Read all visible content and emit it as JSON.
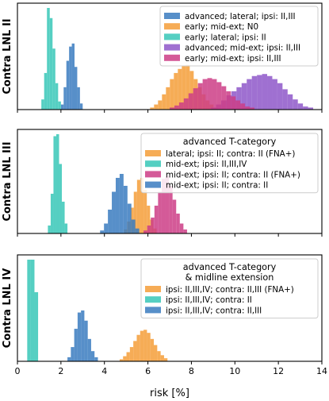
{
  "chart_data": [
    {
      "type": "histogram",
      "ylabel": "Contra LNL II",
      "xlim": [
        0,
        14
      ],
      "legend_title": "",
      "legend_position": "top-right",
      "series": [
        {
          "name": "advanced; lateral; ipsi: II,III",
          "color": "#3a7bbf",
          "start": 2.0,
          "end": 3.0,
          "counts": [
            5,
            22,
            48,
            62,
            65,
            42,
            22,
            6
          ]
        },
        {
          "name": "early; mid-ext; N0",
          "color": "#f49e38",
          "start": 6.1,
          "end": 9.2,
          "counts": [
            2,
            5,
            9,
            15,
            22,
            30,
            36,
            40,
            43,
            44,
            38,
            30,
            22,
            15,
            9,
            5,
            2
          ]
        },
        {
          "name": "early; lateral; ipsi: II",
          "color": "#37c7b7",
          "start": 1.1,
          "end": 2.0,
          "counts": [
            10,
            36,
            100,
            90,
            60,
            26,
            8
          ]
        },
        {
          "name": "advanced; mid-ext; ipsi: II,III",
          "color": "#8e57c9",
          "start": 8.9,
          "end": 13.6,
          "counts": [
            2,
            5,
            9,
            14,
            18,
            22,
            26,
            30,
            33,
            34,
            35,
            33,
            30,
            26,
            20,
            15,
            10,
            6,
            3,
            2
          ]
        },
        {
          "name": "early; mid-ext; ipsi: II,III",
          "color": "#cc3d86",
          "start": 7.0,
          "end": 10.9,
          "counts": [
            2,
            4,
            7,
            11,
            16,
            21,
            26,
            30,
            31,
            30,
            27,
            23,
            18,
            13,
            9,
            6,
            3,
            2
          ]
        }
      ]
    },
    {
      "type": "histogram",
      "ylabel": "Contra LNL III",
      "xlim": [
        0,
        14
      ],
      "legend_title": "advanced T-category",
      "legend_position": "top-right",
      "series": [
        {
          "name": "lateral; ipsi: II; contra: II (FNA+)",
          "color": "#f49e38",
          "start": 4.9,
          "end": 6.4,
          "counts": [
            4,
            12,
            26,
            42,
            54,
            56,
            44,
            28,
            14,
            5
          ]
        },
        {
          "name": "mid-ext; ipsi: II,III,IV",
          "color": "#37c7b7",
          "start": 1.4,
          "end": 2.3,
          "counts": [
            8,
            40,
            98,
            100,
            70,
            32,
            10
          ]
        },
        {
          "name": "mid-ext; ipsi: II; contra: II (FNA+)",
          "color": "#cc3d86",
          "start": 5.8,
          "end": 7.8,
          "counts": [
            3,
            8,
            16,
            28,
            42,
            55,
            58,
            48,
            34,
            20,
            10,
            4
          ]
        },
        {
          "name": "mid-ext; ipsi: II; contra: II",
          "color": "#3a7bbf",
          "start": 3.8,
          "end": 5.6,
          "counts": [
            3,
            10,
            24,
            42,
            56,
            60,
            48,
            30,
            14,
            5
          ]
        }
      ]
    },
    {
      "type": "histogram",
      "ylabel": "Contra LNL IV",
      "xlim": [
        0,
        14
      ],
      "xlabel": "risk [%]",
      "xticks": [
        0,
        2,
        4,
        6,
        8,
        10,
        12,
        14
      ],
      "legend_title": "advanced T-category & midline extension",
      "legend_position": "top-right",
      "series": [
        {
          "name": "ipsi: II,III,IV; contra: II,III (FNA+)",
          "color": "#f49e38",
          "start": 4.7,
          "end": 6.9,
          "counts": [
            2,
            5,
            9,
            14,
            20,
            26,
            30,
            31,
            28,
            22,
            16,
            10,
            6,
            3
          ]
        },
        {
          "name": "ipsi: II,III,IV; contra: II",
          "color": "#37c7b7",
          "start": 0.45,
          "end": 0.95,
          "counts": [
            100,
            100,
            68
          ]
        },
        {
          "name": "ipsi: II,III,IV; contra: II,III",
          "color": "#3a7bbf",
          "start": 2.3,
          "end": 3.7,
          "counts": [
            4,
            14,
            32,
            48,
            50,
            40,
            22,
            10,
            4
          ]
        }
      ]
    }
  ]
}
